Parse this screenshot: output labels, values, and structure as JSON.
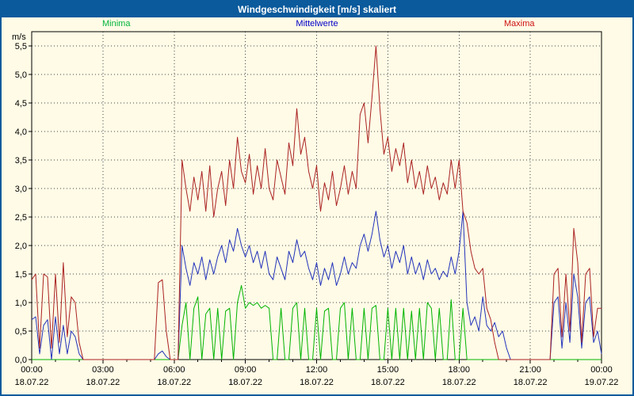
{
  "colors": {
    "titlebar_bg": "#0a5a9c",
    "page_bg": "#fffbe6",
    "grid": "#444444",
    "axis": "#000000"
  },
  "title_bar": {
    "title": "Windgeschwindigkeit [m/s] skaliert"
  },
  "legend": {
    "items": [
      {
        "label": "Minima",
        "color": "#00b43c"
      },
      {
        "label": "Mittelwerte",
        "color": "#0000c8"
      },
      {
        "label": "Maxima",
        "color": "#cc1111"
      }
    ]
  },
  "chart_data": {
    "type": "line",
    "title": "Windgeschwindigkeit [m/s] skaliert",
    "xlabel": "",
    "ylabel": "m/s",
    "ylim": [
      0,
      5.75
    ],
    "grid": true,
    "legend_position": "top",
    "interval_minutes": 10,
    "y_ticks": [
      {
        "v": 0.0,
        "label": "0,0"
      },
      {
        "v": 0.5,
        "label": "0,5"
      },
      {
        "v": 1.0,
        "label": "1,0"
      },
      {
        "v": 1.5,
        "label": "1,5"
      },
      {
        "v": 2.0,
        "label": "2,0"
      },
      {
        "v": 2.5,
        "label": "2,5"
      },
      {
        "v": 3.0,
        "label": "3,0"
      },
      {
        "v": 3.5,
        "label": "3,5"
      },
      {
        "v": 4.0,
        "label": "4,0"
      },
      {
        "v": 4.5,
        "label": "4,5"
      },
      {
        "v": 5.0,
        "label": "5,0"
      },
      {
        "v": 5.5,
        "label": "5,5"
      }
    ],
    "x_ticks": [
      {
        "hour": 0,
        "time": "00:00",
        "date": "18.07.22"
      },
      {
        "hour": 3,
        "time": "03:00",
        "date": "18.07.22"
      },
      {
        "hour": 6,
        "time": "06:00",
        "date": "18.07.22"
      },
      {
        "hour": 9,
        "time": "09:00",
        "date": "18.07.22"
      },
      {
        "hour": 12,
        "time": "12:00",
        "date": "18.07.22"
      },
      {
        "hour": 15,
        "time": "15:00",
        "date": "18.07.22"
      },
      {
        "hour": 18,
        "time": "18:00",
        "date": "18.07.22"
      },
      {
        "hour": 21,
        "time": "21:00",
        "date": "18.07.22"
      },
      {
        "hour": 24,
        "time": "00:00",
        "date": "19.07.22"
      }
    ],
    "series": [
      {
        "name": "Minima",
        "color": "#00b400",
        "values": [
          0,
          0,
          0,
          0,
          0,
          0,
          0,
          0,
          0,
          0,
          0,
          0,
          0,
          0,
          0,
          0,
          0,
          0,
          0,
          0,
          0,
          0,
          0,
          0,
          0,
          0,
          0,
          0,
          0,
          0,
          0,
          0,
          0,
          0,
          0,
          0,
          0,
          0,
          0.6,
          1.0,
          0,
          0.9,
          1.1,
          0,
          0.8,
          0.9,
          0,
          0.9,
          0,
          0.85,
          0.9,
          0,
          1.0,
          1.3,
          0.9,
          1.0,
          0.95,
          1.0,
          0.9,
          0.95,
          0.9,
          0,
          0,
          0.9,
          0,
          0,
          0.9,
          1.0,
          0,
          0.9,
          0,
          0,
          0.9,
          0,
          0.85,
          0.9,
          0,
          0,
          0.9,
          1.0,
          0,
          0.9,
          0,
          0,
          0.9,
          0,
          0.9,
          0.95,
          0,
          0,
          0.9,
          0,
          0.9,
          0,
          0.9,
          0,
          0.85,
          0,
          0.9,
          0,
          1.0,
          0.9,
          0,
          0.9,
          0,
          0,
          1.05,
          0,
          0,
          0.9,
          0,
          0,
          0,
          0,
          0,
          0,
          0,
          0,
          0,
          0,
          0,
          0,
          0,
          0,
          0,
          0,
          0,
          0,
          0,
          0,
          0,
          0,
          0,
          0,
          0,
          0,
          0,
          0,
          0,
          0,
          0,
          0,
          0,
          0,
          0
        ]
      },
      {
        "name": "Mittelwerte",
        "color": "#2233bb",
        "values": [
          0.7,
          0.75,
          0.1,
          0.6,
          0.7,
          0,
          0.75,
          0.1,
          0.6,
          0.1,
          0.5,
          0.4,
          0.1,
          0,
          0,
          0,
          0,
          0,
          0,
          0,
          0,
          0,
          0,
          0,
          0,
          0,
          0,
          0,
          0,
          0,
          0,
          0,
          0.1,
          0.15,
          0.05,
          0,
          0,
          0,
          2.0,
          1.6,
          1.3,
          1.7,
          1.5,
          1.8,
          1.4,
          1.75,
          1.5,
          1.8,
          2.0,
          1.7,
          2.1,
          1.9,
          2.3,
          2.0,
          1.8,
          2.0,
          1.7,
          1.9,
          1.6,
          1.9,
          1.5,
          1.4,
          1.8,
          1.6,
          1.4,
          1.9,
          1.7,
          2.1,
          1.8,
          1.9,
          1.6,
          1.4,
          1.7,
          1.3,
          1.6,
          1.4,
          1.7,
          1.3,
          1.5,
          1.8,
          1.5,
          1.7,
          1.6,
          2.0,
          2.2,
          1.9,
          2.2,
          2.6,
          2.1,
          1.8,
          2.0,
          1.6,
          1.9,
          1.7,
          2.0,
          1.5,
          1.8,
          1.5,
          1.7,
          1.4,
          1.75,
          1.5,
          1.6,
          1.4,
          1.55,
          1.45,
          1.8,
          1.5,
          1.9,
          2.6,
          1.0,
          0.6,
          0.75,
          0.5,
          1.1,
          0.6,
          0.5,
          0.65,
          0.4,
          0.5,
          0.2,
          0,
          0,
          0,
          0,
          0,
          0,
          0,
          0,
          0,
          0,
          0,
          1.0,
          1.1,
          0.2,
          1.0,
          0.3,
          1.5,
          1.1,
          0.2,
          1.0,
          1.1,
          0.3,
          0.5,
          0.1
        ]
      },
      {
        "name": "Maxima",
        "color": "#aa2222",
        "values": [
          1.4,
          1.5,
          0.2,
          1.5,
          1.45,
          0.2,
          1.5,
          0.3,
          1.7,
          0.4,
          1.1,
          1.0,
          0.3,
          0,
          0,
          0,
          0,
          0,
          0,
          0,
          0,
          0,
          0,
          0,
          0,
          0,
          0,
          0,
          0,
          0,
          0,
          0,
          1.35,
          1.4,
          0.5,
          0,
          0,
          0,
          3.5,
          3.0,
          2.6,
          3.2,
          2.8,
          3.3,
          2.6,
          3.4,
          2.5,
          3.0,
          3.3,
          2.7,
          3.5,
          3.0,
          3.9,
          3.3,
          3.1,
          3.6,
          2.9,
          3.4,
          3.0,
          3.7,
          3.0,
          2.8,
          3.5,
          3.2,
          2.9,
          3.8,
          3.4,
          4.4,
          3.6,
          3.9,
          3.3,
          3.0,
          3.4,
          2.6,
          3.1,
          2.8,
          3.3,
          2.7,
          3.0,
          3.4,
          2.9,
          3.3,
          3.0,
          4.3,
          4.5,
          3.8,
          4.6,
          5.5,
          4.4,
          3.6,
          3.9,
          3.3,
          3.7,
          3.4,
          3.8,
          3.1,
          3.5,
          3.0,
          3.3,
          2.9,
          3.4,
          3.0,
          3.2,
          2.8,
          3.1,
          2.9,
          3.5,
          3.0,
          3.5,
          2.6,
          2.4,
          1.9,
          1.6,
          1.5,
          1.6,
          0.9,
          0.7,
          0.3,
          0,
          0,
          0,
          0,
          0,
          0,
          0,
          0,
          0,
          0,
          0,
          0,
          0,
          0,
          1.5,
          1.6,
          0.4,
          1.5,
          0.5,
          2.3,
          1.7,
          0.3,
          1.5,
          1.6,
          0.4,
          0.9,
          0.9
        ]
      }
    ]
  }
}
